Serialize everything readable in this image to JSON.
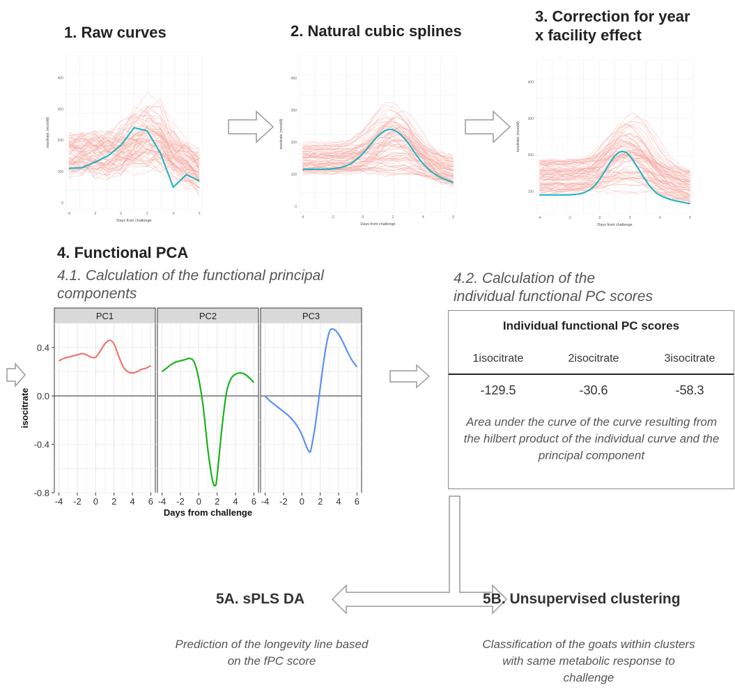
{
  "steps": {
    "s1": "1. Raw curves",
    "s2": "2. Natural cubic splines",
    "s3_line1": "3. Correction for year",
    "s3_line2": "x facility effect",
    "s4": "4. Functional PCA",
    "s41_line1": "4.1. Calculation of the functional principal",
    "s41_line2": "components",
    "s42_line1": "4.2. Calculation of the",
    "s42_line2": "individual functional PC scores",
    "s5a": "5A. sPLS DA",
    "s5b": "5B. Unsupervised clustering"
  },
  "mini_plots": {
    "xlabel": "Days from challenge",
    "ylabel": "isocitrate (mcroM)",
    "xticks": [
      "-4",
      "-2",
      "0",
      "2",
      "4",
      "6"
    ],
    "yticks_plot1": [
      "0",
      "100",
      "200",
      "300",
      "400"
    ],
    "yticks_plot2": [
      "0",
      "100",
      "200",
      "300",
      "400"
    ],
    "yticks_plot3": [
      "100",
      "200",
      "300",
      "400"
    ]
  },
  "chart_data": {
    "type": "line",
    "xlabel": "Days from challenge",
    "ylabel": "isocitrate",
    "ylim": [
      -0.8,
      0.6
    ],
    "xlim": [
      -4.5,
      6.5
    ],
    "yticks": [
      -0.8,
      -0.4,
      0.0,
      0.4
    ],
    "xticks": [
      -4,
      -2,
      0,
      2,
      4,
      6
    ],
    "panels": [
      {
        "name": "PC1",
        "color": "#f07470",
        "x": [
          -4,
          -3.5,
          -3,
          -2.5,
          -2,
          -1.5,
          -1,
          -0.5,
          0,
          0.5,
          1,
          1.5,
          2,
          2.5,
          3,
          3.5,
          4,
          4.5,
          5,
          5.5,
          6
        ],
        "y": [
          0.29,
          0.31,
          0.32,
          0.33,
          0.34,
          0.35,
          0.34,
          0.32,
          0.32,
          0.37,
          0.43,
          0.46,
          0.43,
          0.33,
          0.24,
          0.2,
          0.19,
          0.2,
          0.22,
          0.23,
          0.25
        ]
      },
      {
        "name": "PC2",
        "color": "#1ab21a",
        "x": [
          -4,
          -3.5,
          -3,
          -2.5,
          -2,
          -1.5,
          -1,
          -0.5,
          0,
          0.5,
          1,
          1.5,
          1.8,
          2,
          2.5,
          3,
          3.5,
          4,
          4.5,
          5,
          5.5,
          6
        ],
        "y": [
          0.2,
          0.23,
          0.26,
          0.28,
          0.29,
          0.3,
          0.31,
          0.28,
          0.14,
          -0.1,
          -0.45,
          -0.7,
          -0.74,
          -0.66,
          -0.28,
          0.02,
          0.14,
          0.18,
          0.19,
          0.18,
          0.15,
          0.11
        ]
      },
      {
        "name": "PC3",
        "color": "#5b8ff9",
        "x": [
          -4,
          -3.5,
          -3,
          -2.5,
          -2,
          -1.5,
          -1,
          -0.5,
          0,
          0.5,
          0.8,
          1,
          1.5,
          2,
          2.5,
          3,
          3.5,
          4,
          4.5,
          5,
          5.5,
          6
        ],
        "y": [
          0.0,
          -0.04,
          -0.07,
          -0.1,
          -0.13,
          -0.16,
          -0.2,
          -0.25,
          -0.32,
          -0.42,
          -0.46,
          -0.44,
          -0.22,
          0.07,
          0.35,
          0.53,
          0.55,
          0.51,
          0.44,
          0.36,
          0.29,
          0.24
        ]
      }
    ]
  },
  "scores": {
    "title": "Individual functional PC scores",
    "columns": [
      "1isocitrate",
      "2isocitrate",
      "3isocitrate"
    ],
    "values": [
      "-129.5",
      "-30.6",
      "-58.3"
    ],
    "note": "Area under the curve of the curve resulting from the hilbert product of the individual curve and the principal component"
  },
  "outcomes": {
    "a_desc": "Prediction of the longevity line based on the fPC score",
    "b_desc": "Classification of the goats within clusters with same metabolic response to challenge"
  },
  "colors": {
    "raw_line": "#f4a59c",
    "mean_line": "#17b3c4",
    "arrow": "#999999"
  }
}
